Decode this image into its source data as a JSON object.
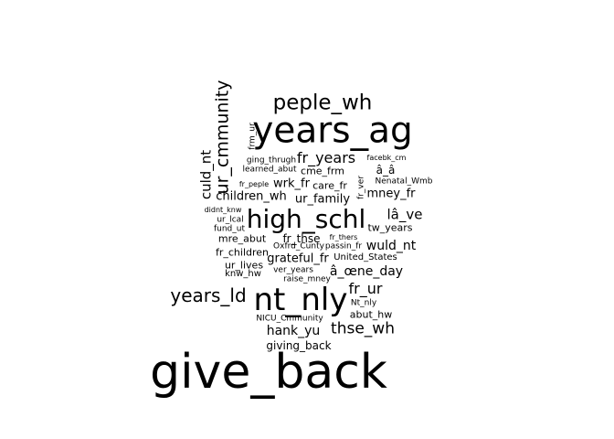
{
  "words": [
    {
      "text": "give_back",
      "weight": 1.0
    },
    {
      "text": "years_ag",
      "weight": 0.72
    },
    {
      "text": "nt_nly",
      "weight": 0.62
    },
    {
      "text": "high_schl",
      "weight": 0.52
    },
    {
      "text": "peple_wh",
      "weight": 0.42
    },
    {
      "text": "years_ld",
      "weight": 0.36
    },
    {
      "text": "ur_cmmunity",
      "weight": 0.34
    },
    {
      "text": "thse_wh",
      "weight": 0.32
    },
    {
      "text": "fr_years",
      "weight": 0.3
    },
    {
      "text": "fr_ur",
      "weight": 0.3
    },
    {
      "text": "culd_nt",
      "weight": 0.28
    },
    {
      "text": "lâ_ve",
      "weight": 0.28
    },
    {
      "text": "wuld_nt",
      "weight": 0.26
    },
    {
      "text": "hank_yu",
      "weight": 0.26
    },
    {
      "text": "â_œne_day",
      "weight": 0.26
    },
    {
      "text": "children_wh",
      "weight": 0.25
    },
    {
      "text": "ur_family",
      "weight": 0.25
    },
    {
      "text": "mney_fr",
      "weight": 0.25
    },
    {
      "text": "wrk_fr",
      "weight": 0.25
    },
    {
      "text": "grateful_fr",
      "weight": 0.25
    },
    {
      "text": "giving_back",
      "weight": 0.23
    },
    {
      "text": "â_â",
      "weight": 0.22
    },
    {
      "text": "fr_thse",
      "weight": 0.22
    },
    {
      "text": "tw_years",
      "weight": 0.2
    },
    {
      "text": "cme_frm",
      "weight": 0.2
    },
    {
      "text": "care_fr",
      "weight": 0.2
    },
    {
      "text": "mre_abut",
      "weight": 0.2
    },
    {
      "text": "fr_children",
      "weight": 0.2
    },
    {
      "text": "ur_lives",
      "weight": 0.2
    },
    {
      "text": "abut_hw",
      "weight": 0.2
    },
    {
      "text": "United_States",
      "weight": 0.19
    },
    {
      "text": "knw_hw",
      "weight": 0.18
    },
    {
      "text": "ging_thrugh",
      "weight": 0.17
    },
    {
      "text": "learned_abut",
      "weight": 0.17
    },
    {
      "text": "Nenatal_Wmb",
      "weight": 0.17
    },
    {
      "text": "fund_ut",
      "weight": 0.17
    },
    {
      "text": "ur_lcal",
      "weight": 0.17
    },
    {
      "text": "frm_ur",
      "weight": 0.17
    },
    {
      "text": "fr_ver",
      "weight": 0.17
    },
    {
      "text": "passin_fr",
      "weight": 0.16
    },
    {
      "text": "Oxfrd_Cunty",
      "weight": 0.16
    },
    {
      "text": "ver_years",
      "weight": 0.16
    },
    {
      "text": "raise_mney",
      "weight": 0.16
    },
    {
      "text": "NICU_Cmmunity",
      "weight": 0.16
    },
    {
      "text": "Nt_nly",
      "weight": 0.16
    },
    {
      "text": "facebk_cm",
      "weight": 0.15
    },
    {
      "text": "fr_peple",
      "weight": 0.15
    },
    {
      "text": "didnt_knw",
      "weight": 0.15
    },
    {
      "text": "fr_thers",
      "weight": 0.14
    }
  ]
}
